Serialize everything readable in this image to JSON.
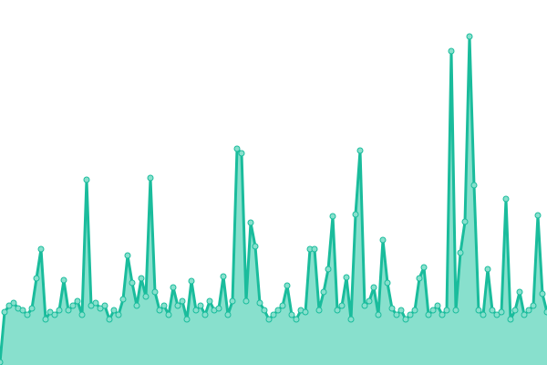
{
  "chart_data": {
    "type": "area",
    "title": "",
    "xlabel": "",
    "ylabel": "",
    "ylim": [
      0,
      400
    ],
    "grid": false,
    "legend": "none",
    "colors": {
      "line": "#1abc9c",
      "fill": "#88e0cd",
      "marker_fill": "#88e0cd",
      "marker_stroke": "#1abc9c"
    },
    "values": [
      3,
      58,
      65,
      68,
      62,
      60,
      55,
      62,
      95,
      127,
      50,
      58,
      55,
      60,
      93,
      60,
      65,
      70,
      55,
      203,
      65,
      68,
      62,
      65,
      50,
      60,
      55,
      72,
      120,
      90,
      65,
      95,
      75,
      205,
      80,
      60,
      65,
      55,
      85,
      65,
      70,
      50,
      92,
      60,
      65,
      55,
      70,
      60,
      62,
      97,
      55,
      70,
      237,
      232,
      70,
      156,
      130,
      68,
      60,
      50,
      55,
      60,
      65,
      87,
      55,
      50,
      60,
      58,
      127,
      127,
      60,
      80,
      105,
      163,
      60,
      65,
      96,
      50,
      165,
      235,
      65,
      70,
      85,
      55,
      137,
      90,
      62,
      55,
      60,
      50,
      55,
      60,
      95,
      107,
      55,
      60,
      65,
      55,
      60,
      344,
      60,
      123,
      157,
      360,
      197,
      60,
      55,
      105,
      60,
      55,
      58,
      182,
      50,
      60,
      80,
      55,
      60,
      65,
      164,
      78,
      58
    ]
  }
}
